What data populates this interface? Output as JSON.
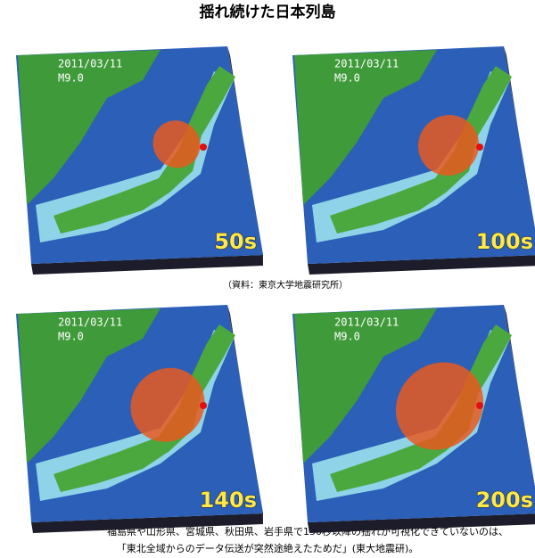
{
  "header": {
    "title": "揺れ続けた日本列島"
  },
  "panels": [
    {
      "date": "2011/03/11",
      "magnitude": "M9.0",
      "time": "50s"
    },
    {
      "date": "2011/03/11",
      "magnitude": "M9.0",
      "time": "100s"
    },
    {
      "date": "2011/03/11",
      "magnitude": "M9.0",
      "time": "140s"
    },
    {
      "date": "2011/03/11",
      "magnitude": "M9.0",
      "time": "200s"
    }
  ],
  "source": "（資料：東京大学地震研究所）",
  "caption": [
    "福島県や山形県、宮城県、秋田県、岩手県で150秒以降の揺れが可視化できていないのは、",
    "「東北全域からのデータ伝送が突然途絶えたためだ」(東大地震研)。"
  ]
}
